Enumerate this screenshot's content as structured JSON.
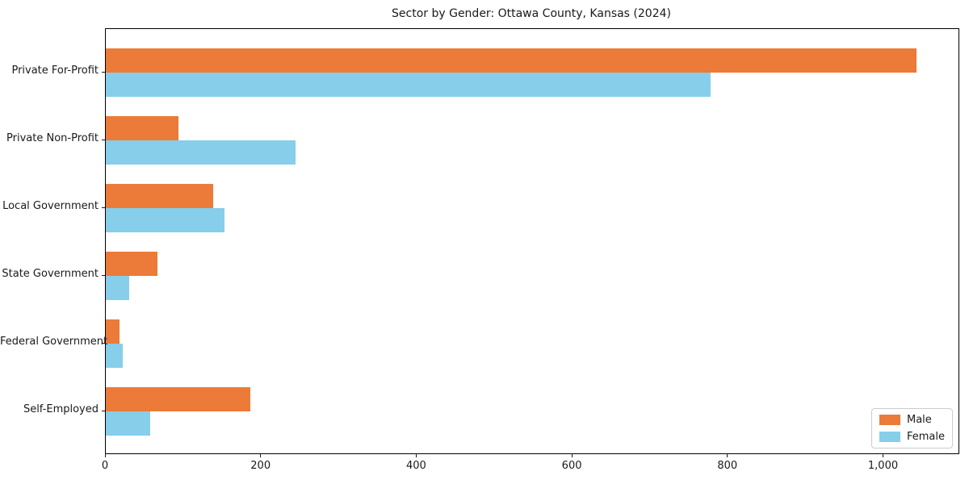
{
  "chart_data": {
    "type": "bar",
    "orientation": "horizontal",
    "title": "Sector by Gender: Ottawa County, Kansas (2024)",
    "xlabel": "",
    "ylabel": "",
    "categories": [
      "Private For-Profit",
      "Private Non-Profit",
      "Local Government",
      "State Government",
      "Federal Government",
      "Self-Employed"
    ],
    "series": [
      {
        "name": "Male",
        "color": "#ec7a38",
        "values": [
          1042,
          93,
          138,
          66,
          18,
          186
        ]
      },
      {
        "name": "Female",
        "color": "#87ceeb",
        "values": [
          777,
          244,
          152,
          30,
          22,
          57
        ]
      }
    ],
    "x_ticks": [
      0,
      200,
      400,
      600,
      800,
      1000
    ],
    "x_tick_labels": [
      "0",
      "200",
      "400",
      "600",
      "800",
      "1,000"
    ],
    "xlim": [
      0,
      1096
    ],
    "grid": false,
    "legend": {
      "position": "lower right",
      "entries": [
        "Male",
        "Female"
      ]
    }
  }
}
